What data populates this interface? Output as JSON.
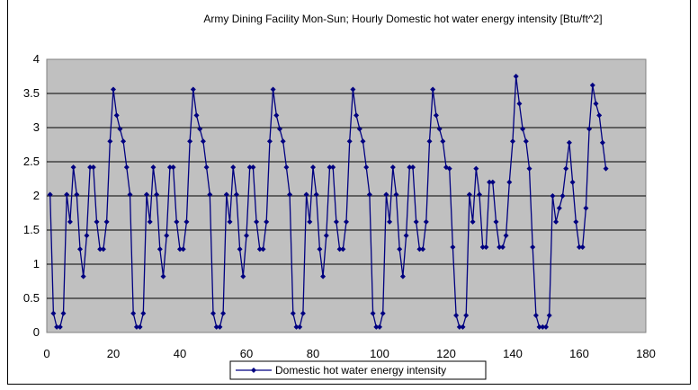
{
  "chart_data": {
    "type": "line",
    "title": "Army Dining Facility Mon-Sun; Hourly Domestic hot water energy intensity [Btu/ft^2]",
    "xlabel": "",
    "ylabel": "",
    "xlim": [
      0,
      180
    ],
    "ylim": [
      0,
      4
    ],
    "x_ticks": [
      "0",
      "20",
      "40",
      "60",
      "80",
      "100",
      "120",
      "140",
      "160",
      "180"
    ],
    "y_ticks": [
      "0",
      "0.5",
      "1",
      "1.5",
      "2",
      "2.5",
      "3",
      "3.5",
      "4"
    ],
    "grid": "horizontal",
    "legend_position": "bottom",
    "colors": {
      "series": "#000080",
      "plot_bg": "#c0c0c0"
    },
    "series": [
      {
        "name": "Domestic hot water energy intensity",
        "x": [
          1,
          2,
          3,
          4,
          5,
          6,
          7,
          8,
          9,
          10,
          11,
          12,
          13,
          14,
          15,
          16,
          17,
          18,
          19,
          20,
          21,
          22,
          23,
          24,
          25,
          26,
          27,
          28,
          29,
          30,
          31,
          32,
          33,
          34,
          35,
          36,
          37,
          38,
          39,
          40,
          41,
          42,
          43,
          44,
          45,
          46,
          47,
          48,
          49,
          50,
          51,
          52,
          53,
          54,
          55,
          56,
          57,
          58,
          59,
          60,
          61,
          62,
          63,
          64,
          65,
          66,
          67,
          68,
          69,
          70,
          71,
          72,
          73,
          74,
          75,
          76,
          77,
          78,
          79,
          80,
          81,
          82,
          83,
          84,
          85,
          86,
          87,
          88,
          89,
          90,
          91,
          92,
          93,
          94,
          95,
          96,
          97,
          98,
          99,
          100,
          101,
          102,
          103,
          104,
          105,
          106,
          107,
          108,
          109,
          110,
          111,
          112,
          113,
          114,
          115,
          116,
          117,
          118,
          119,
          120,
          121,
          122,
          123,
          124,
          125,
          126,
          127,
          128,
          129,
          130,
          131,
          132,
          133,
          134,
          135,
          136,
          137,
          138,
          139,
          140,
          141,
          142,
          143,
          144,
          145,
          146,
          147,
          148,
          149,
          150,
          151,
          152,
          153,
          154,
          155,
          156,
          157,
          158,
          159,
          160,
          161,
          162,
          163,
          164,
          165,
          166,
          167,
          168
        ],
        "values": [
          2.02,
          0.28,
          0.08,
          0.08,
          0.28,
          2.02,
          1.62,
          2.42,
          2.02,
          1.22,
          0.82,
          1.42,
          2.42,
          2.42,
          1.62,
          1.22,
          1.22,
          1.62,
          2.8,
          3.56,
          3.18,
          2.98,
          2.8,
          2.42,
          2.02,
          0.28,
          0.08,
          0.08,
          0.28,
          2.02,
          1.62,
          2.42,
          2.02,
          1.22,
          0.82,
          1.42,
          2.42,
          2.42,
          1.62,
          1.22,
          1.22,
          1.62,
          2.8,
          3.56,
          3.18,
          2.98,
          2.8,
          2.42,
          2.02,
          0.28,
          0.08,
          0.08,
          0.28,
          2.02,
          1.62,
          2.42,
          2.02,
          1.22,
          0.82,
          1.42,
          2.42,
          2.42,
          1.62,
          1.22,
          1.22,
          1.62,
          2.8,
          3.56,
          3.18,
          2.98,
          2.8,
          2.42,
          2.02,
          0.28,
          0.08,
          0.08,
          0.28,
          2.02,
          1.62,
          2.42,
          2.02,
          1.22,
          0.82,
          1.42,
          2.42,
          2.42,
          1.62,
          1.22,
          1.22,
          1.62,
          2.8,
          3.56,
          3.18,
          2.98,
          2.8,
          2.42,
          2.02,
          0.28,
          0.08,
          0.08,
          0.28,
          2.02,
          1.62,
          2.42,
          2.02,
          1.22,
          0.82,
          1.42,
          2.42,
          2.42,
          1.62,
          1.22,
          1.22,
          1.62,
          2.8,
          3.56,
          3.18,
          2.98,
          2.8,
          2.42,
          2.4,
          1.25,
          0.25,
          0.08,
          0.08,
          0.25,
          2.02,
          1.62,
          2.4,
          2.02,
          1.25,
          1.25,
          2.2,
          2.2,
          1.62,
          1.25,
          1.25,
          1.42,
          2.2,
          2.8,
          3.75,
          3.35,
          2.98,
          2.8,
          2.4,
          1.25,
          0.25,
          0.08,
          0.08,
          0.08,
          0.25,
          2.0,
          1.62,
          1.82,
          2.0,
          2.4,
          2.78,
          2.2,
          1.62,
          1.25,
          1.25,
          1.82,
          2.98,
          3.62,
          3.35,
          3.18,
          2.78,
          2.4
        ]
      }
    ]
  }
}
